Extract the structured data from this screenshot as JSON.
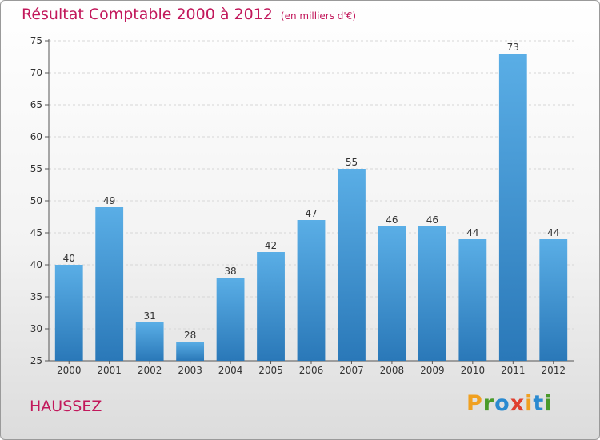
{
  "header": {
    "title": "Résultat Comptable 2000 à 2012",
    "unit": "(en milliers d'€)"
  },
  "footer": {
    "commune": "HAUSSEZ",
    "logo": [
      "P",
      "r",
      "o",
      "x",
      "i",
      "t",
      "i"
    ]
  },
  "colors": {
    "title": "#c2185b",
    "bar_top": "#5aaee6",
    "bar_bottom": "#2a78b8",
    "logo_letters": [
      "#f0a020",
      "#4a9a2a",
      "#2a8ad0",
      "#e04030",
      "#f0a020",
      "#2a8ad0",
      "#4a9a2a"
    ]
  },
  "chart_data": {
    "type": "bar",
    "title": "Résultat Comptable 2000 à 2012",
    "subtitle": "(en milliers d'€)",
    "xlabel": "",
    "ylabel": "",
    "categories": [
      "2000",
      "2001",
      "2002",
      "2003",
      "2004",
      "2005",
      "2006",
      "2007",
      "2008",
      "2009",
      "2010",
      "2011",
      "2012"
    ],
    "values": [
      40,
      49,
      31,
      28,
      38,
      42,
      47,
      55,
      46,
      46,
      44,
      73,
      44
    ],
    "ylim": [
      25,
      75
    ],
    "yticks": [
      25,
      30,
      35,
      40,
      45,
      50,
      55,
      60,
      65,
      70,
      75
    ],
    "grid": true
  }
}
